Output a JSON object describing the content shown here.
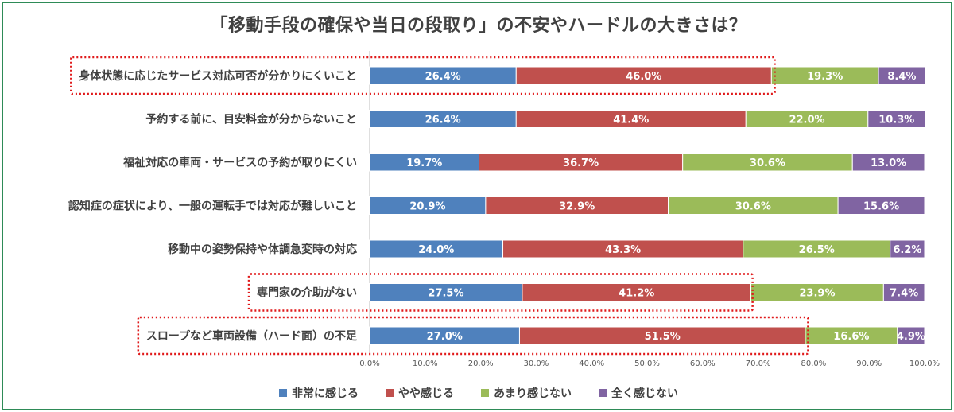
{
  "chart_data": {
    "type": "bar",
    "orientation": "horizontal",
    "stacked": "percent",
    "title": "「移動手段の確保や当日の段取り」の不安やハードルの大きさは？",
    "categories": [
      "身体状態に応じたサービス対応可否が分かりにくいこと",
      "予約する前に、目安料金が分からないこと",
      "福祉対応の車両・サービスの予約が取りにくい",
      "認知症の症状により、一般の運転手では対応が難しいこと",
      "移動中の姿勢保持や体調急変時の対応",
      "専門家の介助がない",
      "スロープなど車両設備（ハード面）の不足"
    ],
    "series": [
      {
        "name": "非常に感じる",
        "color": "#4f81bd",
        "values": [
          26.4,
          26.4,
          19.7,
          20.9,
          24.0,
          27.5,
          27.0
        ],
        "labels": [
          "26.4%",
          "26.4%",
          "19.7%",
          "20.9%",
          "24.0%",
          "27.5%",
          "27.0%"
        ]
      },
      {
        "name": "やや感じる",
        "color": "#c0504d",
        "values": [
          46.0,
          41.4,
          36.7,
          32.9,
          43.3,
          41.2,
          51.5
        ],
        "labels": [
          "46.0%",
          "41.4%",
          "36.7%",
          "32.9%",
          "43.3%",
          "41.2%",
          "51.5%"
        ]
      },
      {
        "name": "あまり感じない",
        "color": "#9bbb59",
        "values": [
          19.3,
          22.0,
          30.6,
          30.6,
          26.5,
          23.9,
          16.6
        ],
        "labels": [
          "19.3%",
          "22.0%",
          "30.6%",
          "30.6%",
          "26.5%",
          "23.9%",
          "16.6%"
        ]
      },
      {
        "name": "全く感じない",
        "color": "#8064a2",
        "values": [
          8.4,
          10.3,
          13.0,
          15.6,
          6.2,
          7.4,
          4.9
        ],
        "labels": [
          "8.4%",
          "10.3%",
          "13.0%",
          "15.6%",
          "6.2%",
          "7.4%",
          "4.9%"
        ]
      }
    ],
    "xlim": [
      0,
      100
    ],
    "xticks": [
      "0.0%",
      "10.0%",
      "20.0%",
      "30.0%",
      "40.0%",
      "50.0%",
      "60.0%",
      "70.0%",
      "80.0%",
      "90.0%",
      "100.0%"
    ],
    "legend_position": "bottom",
    "grid": false,
    "highlighted_categories": [
      {
        "category_index": 0,
        "extends_to_percent": 73.0
      },
      {
        "category_index": 5,
        "extends_to_percent": 69.0
      },
      {
        "category_index": 6,
        "extends_to_percent": 79.0
      }
    ],
    "highlight_color": "#e0191a"
  }
}
